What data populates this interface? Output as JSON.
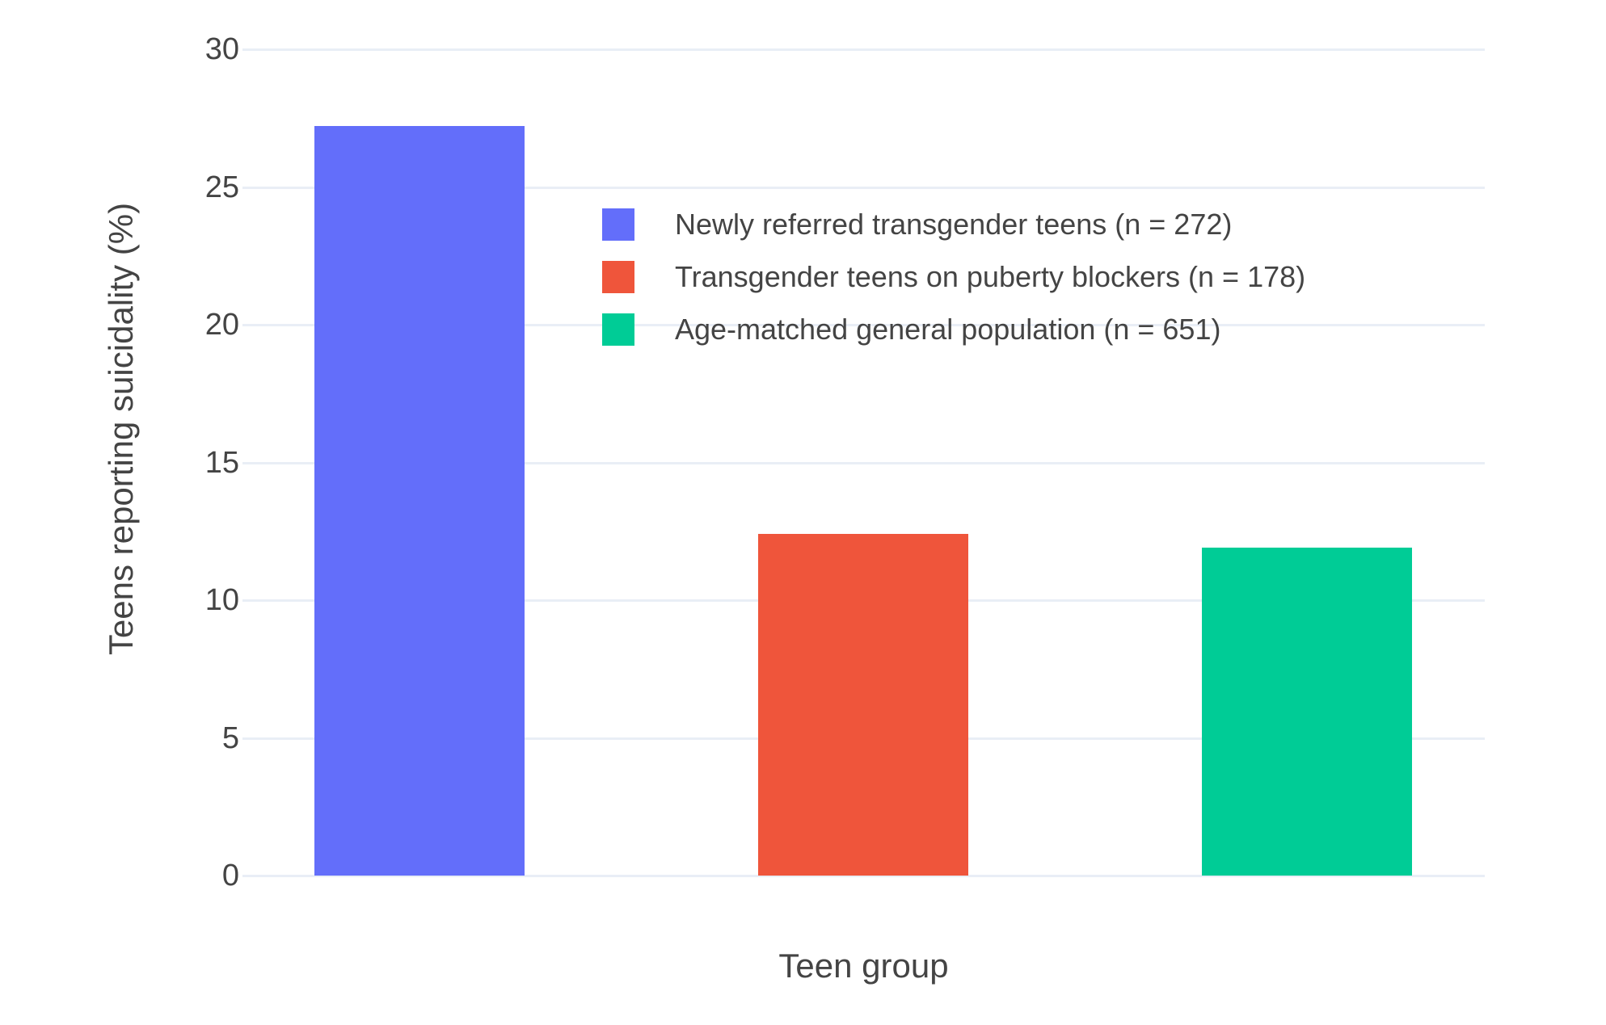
{
  "chart_data": {
    "type": "bar",
    "xlabel": "Teen group",
    "ylabel": "Teens reporting suicidality (%)",
    "ylim": [
      0,
      30
    ],
    "yticks": [
      0,
      5,
      10,
      15,
      20,
      25,
      30
    ],
    "grid": true,
    "legend_position": "inside-top-left",
    "categories": [
      "Newly referred transgender teens (n = 272)",
      "Transgender teens on puberty blockers (n = 178)",
      "Age-matched general population (n = 651)"
    ],
    "bars": [
      {
        "label": "Newly referred transgender teens (n = 272)",
        "value": 27.2,
        "color": "#636EFA"
      },
      {
        "label": "Transgender teens on puberty blockers (n = 178)",
        "value": 12.4,
        "color": "#EF553B"
      },
      {
        "label": "Age-matched general population (n = 651)",
        "value": 11.9,
        "color": "#00CC96"
      }
    ],
    "colors": {
      "grid": "#E9EEF6",
      "text": "#444444",
      "background": "#FFFFFF"
    }
  }
}
